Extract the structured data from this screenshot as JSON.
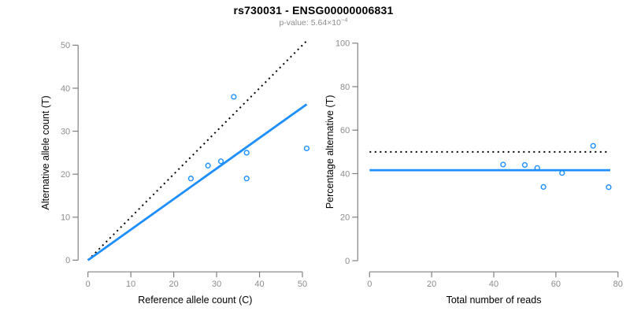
{
  "header": {
    "title": "rs730031 - ENSG00000006831",
    "pvalue_prefix": "p-value: 5.64×10",
    "pvalue_exponent": "−4"
  },
  "colors": {
    "accent_blue": "#1E8FFF",
    "dotted_line_black": "#000000",
    "axis_gray": "#808080",
    "tick_label_gray": "#8C8C8C",
    "axis_title_black": "#000000",
    "subtitle_gray": "#8E8E8E"
  },
  "chart_data": [
    {
      "type": "scatter",
      "name": "allele-count-scatter",
      "xlabel": "Reference allele count (C)",
      "ylabel": "Alternative allele count (T)",
      "xlim": [
        0,
        51
      ],
      "ylim": [
        0,
        51
      ],
      "xticks": [
        0,
        10,
        20,
        30,
        40,
        50
      ],
      "yticks": [
        0,
        10,
        20,
        30,
        40,
        50
      ],
      "grid": false,
      "point_style": {
        "marker": "open-circle",
        "color": "#1E8FFF",
        "radius": 2.9
      },
      "points": [
        [
          24,
          19
        ],
        [
          28,
          22
        ],
        [
          31,
          23
        ],
        [
          34,
          38
        ],
        [
          37,
          19
        ],
        [
          37,
          25
        ],
        [
          51,
          26
        ]
      ],
      "lines": [
        {
          "name": "identity-line",
          "style": "dotted",
          "color": "#000000",
          "x1": 0,
          "y1": 0,
          "x2": 51,
          "y2": 51
        },
        {
          "name": "regression-line",
          "style": "solid",
          "color": "#1E8FFF",
          "x1": 0,
          "y1": 0,
          "x2": 51,
          "y2": 36.25
        }
      ]
    },
    {
      "type": "scatter",
      "name": "percentage-scatter",
      "xlabel": "Total number of reads",
      "ylabel": "Percentage alternative (T)",
      "xlim": [
        0,
        83
      ],
      "ylim": [
        0,
        100
      ],
      "xticks": [
        0,
        20,
        40,
        60,
        80
      ],
      "yticks": [
        0,
        20,
        40,
        60,
        80,
        100
      ],
      "grid": false,
      "point_style": {
        "marker": "open-circle",
        "color": "#1E8FFF",
        "radius": 2.9
      },
      "points": [
        [
          43,
          44.2
        ],
        [
          50,
          44.0
        ],
        [
          54,
          42.6
        ],
        [
          56,
          33.9
        ],
        [
          62,
          40.3
        ],
        [
          72,
          52.8
        ],
        [
          77,
          33.8
        ]
      ],
      "lines": [
        {
          "name": "expected-50pct-line",
          "style": "dotted",
          "color": "#000000",
          "x1": 0,
          "y1": 50,
          "x2": 77.5,
          "y2": 50
        },
        {
          "name": "mean-percentage-line",
          "style": "solid",
          "color": "#1E8FFF",
          "x1": 0,
          "y1": 41.6,
          "x2": 77.5,
          "y2": 41.6
        }
      ]
    }
  ]
}
